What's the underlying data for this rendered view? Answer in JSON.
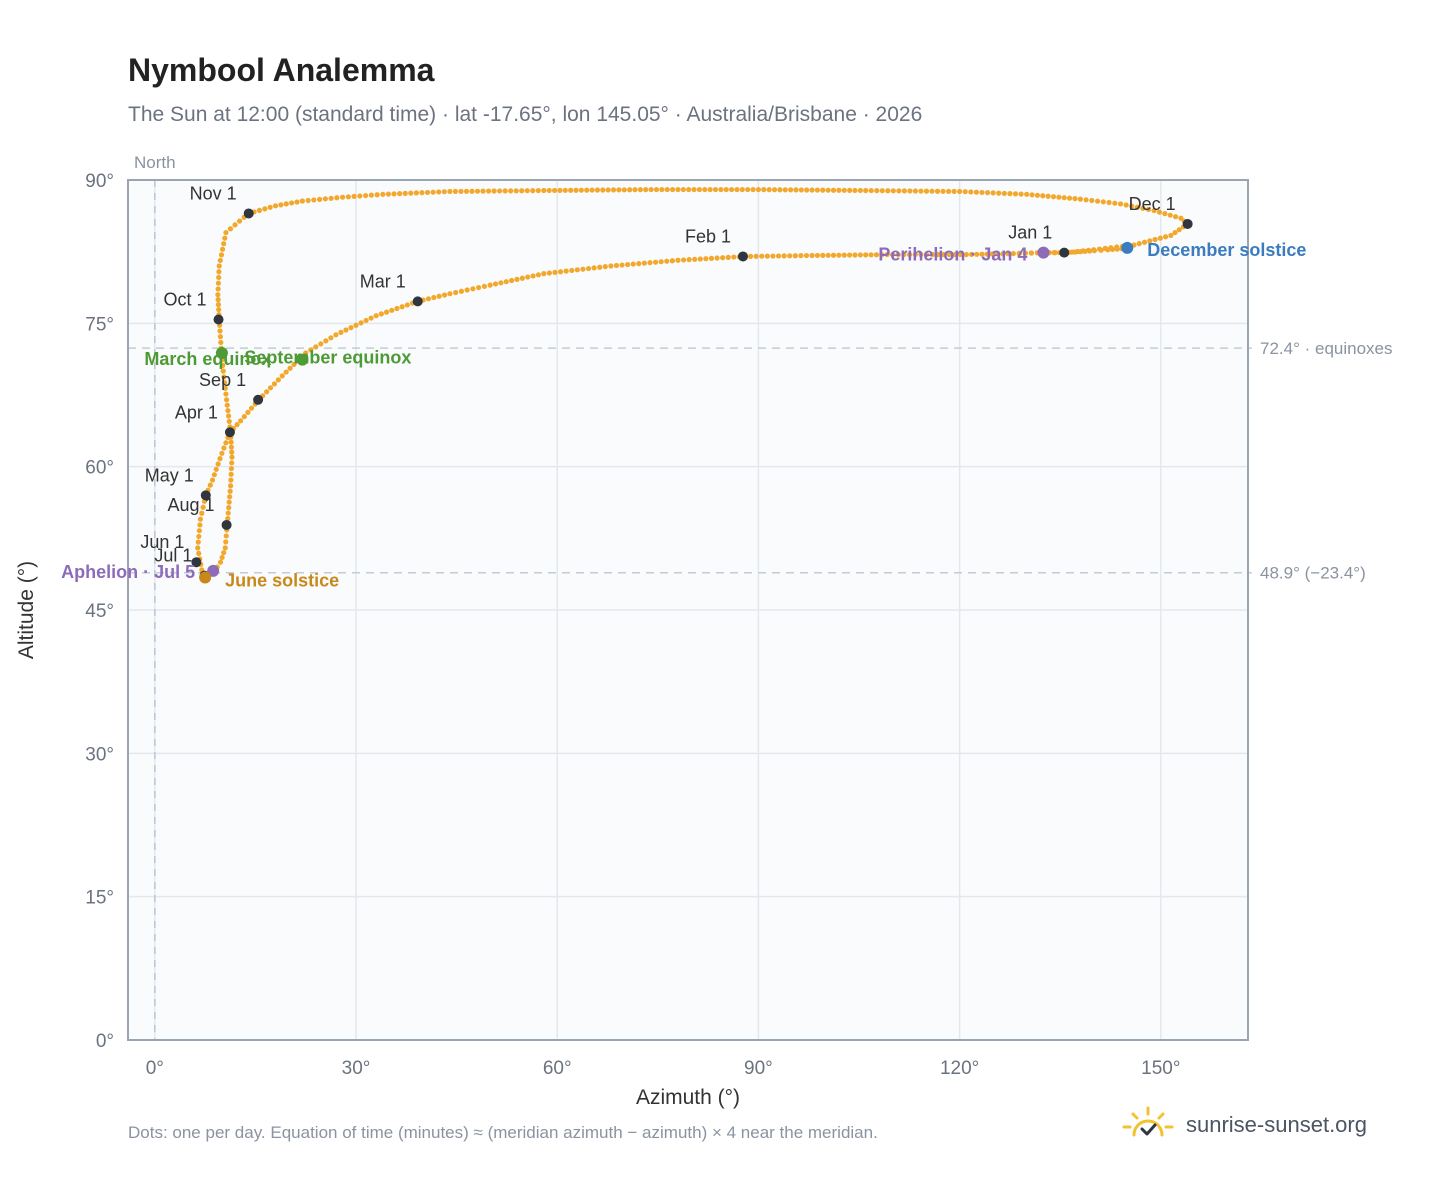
{
  "header": {
    "title": "Nymbool Analemma",
    "subtitle": "The Sun at 12:00 (standard time) · lat -17.65°, lon 145.05° · Australia/Brisbane · 2026"
  },
  "footer": {
    "note": "Dots: one per day. Equation of time (minutes) ≈ (meridian azimuth − azimuth) × 4 near the meridian.",
    "brand": "sunrise-sunset.org"
  },
  "chart_data": {
    "type": "scatter",
    "title": "Nymbool Analemma",
    "xlabel": "Azimuth (°)",
    "ylabel": "Altitude (°)",
    "xlim": [
      -4,
      163
    ],
    "ylim": [
      0,
      90
    ],
    "x_ticks": [
      0,
      30,
      60,
      90,
      120,
      150
    ],
    "y_ticks": [
      0,
      15,
      30,
      45,
      60,
      75,
      90
    ],
    "x_tick_labels": [
      "0°",
      "30°",
      "60°",
      "90°",
      "120°",
      "150°"
    ],
    "y_tick_labels": [
      "0°",
      "15°",
      "30°",
      "45°",
      "60°",
      "75°",
      "90°"
    ],
    "grid": true,
    "meridian": {
      "x": 0,
      "label": "North"
    },
    "reference_lines": [
      {
        "y": 72.4,
        "label": "72.4° · equinoxes"
      },
      {
        "y": 48.9,
        "label": "48.9° (−23.4°)"
      }
    ],
    "series": [
      {
        "points": [
          [
            145.0,
            82.9
          ],
          [
            144.2,
            82.8
          ],
          [
            142.1,
            82.7
          ],
          [
            140.1,
            82.6
          ],
          [
            138.0,
            82.5
          ],
          [
            135.7,
            82.4
          ],
          [
            132.5,
            82.4
          ],
          [
            128.0,
            82.3
          ],
          [
            121.0,
            82.2
          ],
          [
            110.0,
            82.2
          ],
          [
            98.0,
            82.1
          ],
          [
            88.0,
            82.0
          ],
          [
            78.0,
            81.6
          ],
          [
            68.0,
            81.0
          ],
          [
            58.0,
            80.2
          ],
          [
            50.0,
            79.0
          ],
          [
            44.0,
            78.1
          ],
          [
            39.2,
            77.3
          ],
          [
            33.0,
            75.8
          ],
          [
            27.0,
            73.8
          ],
          [
            22.5,
            71.9
          ],
          [
            19.0,
            69.5
          ],
          [
            15.5,
            67.0
          ],
          [
            12.8,
            64.8
          ],
          [
            11.2,
            63.6
          ],
          [
            10.0,
            61.4
          ],
          [
            8.6,
            58.6
          ],
          [
            7.6,
            57.0
          ],
          [
            6.8,
            54.5
          ],
          [
            6.4,
            51.5
          ],
          [
            7.0,
            49.2
          ],
          [
            7.6,
            48.6
          ],
          [
            8.8,
            49.0
          ],
          [
            9.8,
            50.0
          ],
          [
            10.5,
            51.5
          ],
          [
            10.8,
            54.0
          ],
          [
            11.3,
            58.0
          ],
          [
            11.5,
            61.0
          ],
          [
            11.3,
            63.6
          ],
          [
            10.7,
            67.0
          ],
          [
            10.2,
            70.0
          ],
          [
            9.9,
            72.4
          ],
          [
            9.6,
            75.4
          ],
          [
            9.4,
            78.0
          ],
          [
            9.6,
            81.0
          ],
          [
            10.6,
            84.5
          ],
          [
            14.0,
            86.5
          ],
          [
            18.0,
            87.3
          ],
          [
            22.0,
            87.8
          ],
          [
            28.0,
            88.2
          ],
          [
            34.0,
            88.5
          ],
          [
            44.0,
            88.8
          ],
          [
            58.0,
            88.9
          ],
          [
            74.0,
            89.0
          ],
          [
            90.0,
            89.0
          ],
          [
            106.0,
            88.9
          ],
          [
            120.0,
            88.8
          ],
          [
            130.0,
            88.5
          ],
          [
            138.0,
            88.0
          ],
          [
            144.0,
            87.5
          ],
          [
            149.0,
            86.8
          ],
          [
            153.0,
            86.0
          ],
          [
            154.0,
            85.4
          ],
          [
            151.5,
            84.2
          ],
          [
            146.0,
            83.2
          ],
          [
            140.0,
            82.7
          ],
          [
            136.0,
            82.4
          ],
          [
            132.5,
            82.4
          ],
          [
            128.0,
            82.3
          ]
        ]
      }
    ],
    "month_markers": [
      {
        "label": "Jan 1",
        "x": 135.6,
        "y": 82.4
      },
      {
        "label": "Feb 1",
        "x": 87.7,
        "y": 82.0
      },
      {
        "label": "Mar 1",
        "x": 39.2,
        "y": 77.3
      },
      {
        "label": "Apr 1",
        "x": 11.2,
        "y": 63.6
      },
      {
        "label": "May 1",
        "x": 7.6,
        "y": 57.0
      },
      {
        "label": "Jun 1",
        "x": 6.2,
        "y": 50.0
      },
      {
        "label": "Jul 1",
        "x": 7.4,
        "y": 48.6
      },
      {
        "label": "Aug 1",
        "x": 10.7,
        "y": 53.9
      },
      {
        "label": "Sep 1",
        "x": 15.4,
        "y": 67.0
      },
      {
        "label": "Oct 1",
        "x": 9.5,
        "y": 75.4
      },
      {
        "label": "Nov 1",
        "x": 14.0,
        "y": 86.5
      },
      {
        "label": "Dec 1",
        "x": 154.0,
        "y": 85.4
      }
    ],
    "events": [
      {
        "label": "December solstice",
        "x": 145.0,
        "y": 82.9,
        "color": "#3b7bbf"
      },
      {
        "label": "Perihelion · Jan 4",
        "x": 132.5,
        "y": 82.4,
        "color": "#8e6bb8"
      },
      {
        "label": "March equinox",
        "x": 10.0,
        "y": 71.9,
        "color": "#4e9a35"
      },
      {
        "label": "September equinox",
        "x": 22.0,
        "y": 71.2,
        "color": "#4e9a35"
      },
      {
        "label": "Aphelion · Jul 5",
        "x": 8.7,
        "y": 49.1,
        "color": "#8e6bb8"
      },
      {
        "label": "June solstice",
        "x": 7.5,
        "y": 48.4,
        "color": "#c9891a"
      }
    ],
    "colors": {
      "curve": "#f2a82c",
      "marker": "#2f3640",
      "plot_bg": "#f9fbfd",
      "grid": "#e4e8ee",
      "axis": "#9aa5b3",
      "reference": "#c3cbd5"
    }
  }
}
